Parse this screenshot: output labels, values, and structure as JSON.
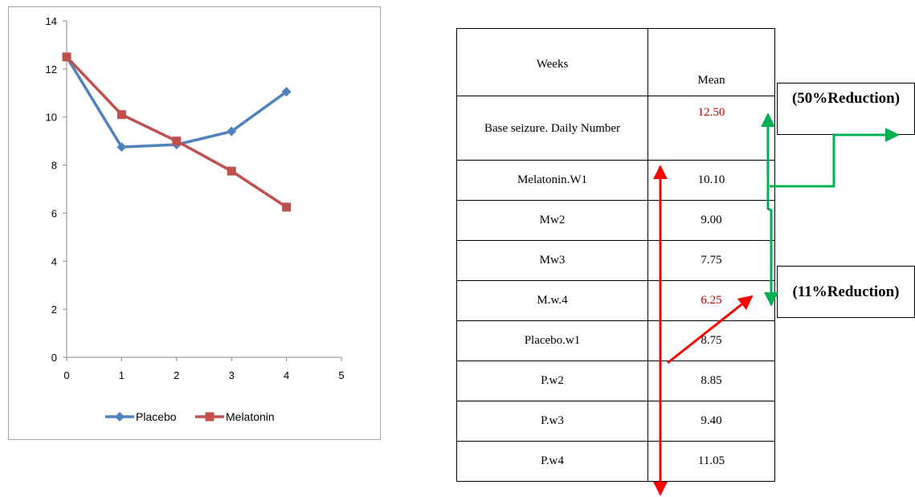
{
  "chart_data": {
    "type": "line",
    "x": [
      0,
      1,
      2,
      3,
      4
    ],
    "xlim": [
      0,
      5
    ],
    "ylim": [
      0,
      14
    ],
    "x_ticks": [
      "0",
      "1",
      "2",
      "3",
      "4",
      "5"
    ],
    "y_ticks": [
      "0",
      "2",
      "4",
      "6",
      "8",
      "10",
      "12",
      "14"
    ],
    "grid": false,
    "legend_position": "bottom",
    "series": [
      {
        "name": "Placebo",
        "values": [
          12.5,
          8.75,
          8.85,
          9.4,
          11.05
        ],
        "color": "#4f81bd",
        "marker": "diamond"
      },
      {
        "name": "Melatonin",
        "values": [
          12.5,
          10.1,
          9.0,
          7.75,
          6.25
        ],
        "color": "#c0504d",
        "marker": "square"
      }
    ]
  },
  "table": {
    "headers": {
      "weeks": "Weeks",
      "mean": "Mean"
    },
    "rows": [
      {
        "label": "Base seizure. Daily Number",
        "value": "12.50",
        "highlight": true
      },
      {
        "label": "Melatonin.W1",
        "value": "10.10",
        "highlight": false
      },
      {
        "label": "Mw2",
        "value": "9.00",
        "highlight": false
      },
      {
        "label": "Mw3",
        "value": "7.75",
        "highlight": false
      },
      {
        "label": "M.w.4",
        "value": "6.25",
        "highlight": true
      },
      {
        "label": "Placebo.w1",
        "value": "8.75",
        "highlight": false
      },
      {
        "label": "P.w2",
        "value": "8.85",
        "highlight": false
      },
      {
        "label": "P.w3",
        "value": "9.40",
        "highlight": false
      },
      {
        "label": "P.w4",
        "value": "11.05",
        "highlight": false
      }
    ]
  },
  "annotations": {
    "reduction_50": "(50%Reduction)",
    "reduction_11": "(11%Reduction)"
  },
  "colors": {
    "highlight_red": "#c00000",
    "arrow_green": "#00b050",
    "arrow_red": "#ff0000"
  }
}
